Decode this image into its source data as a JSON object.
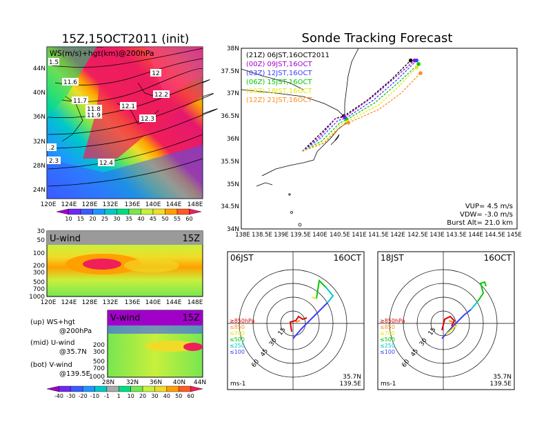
{
  "top_map": {
    "title": "15Z,15OCT2011 (init)",
    "label": "WS(m/s)+hgt(km)@200hPa",
    "lon_ticks": [
      "120E",
      "124E",
      "128E",
      "132E",
      "136E",
      "140E",
      "144E",
      "148E"
    ],
    "lat_ticks": [
      "44N",
      "40N",
      "36N",
      "32N",
      "28N",
      "24N"
    ],
    "height_labels": [
      "1.5",
      "11.6",
      "11.7",
      "11.8",
      "11.9",
      "12.1",
      "12",
      "12.2",
      "12.3",
      "12.4",
      ".2",
      "2.3"
    ],
    "colorbar_labels": [
      "10",
      "15",
      "20",
      "25",
      "30",
      "35",
      "40",
      "45",
      "50",
      "55",
      "60"
    ],
    "colorbar_colors": [
      "#a000c8",
      "#6e28f0",
      "#3c5aff",
      "#1e96ff",
      "#00c8c8",
      "#00dc82",
      "#78e650",
      "#c8f03c",
      "#f0dc28",
      "#ffa000",
      "#ff5a28",
      "#f01e5a"
    ]
  },
  "uwind": {
    "title": "U-wind",
    "time": "15Z",
    "pres_ticks": [
      "30",
      "50",
      "100",
      "200",
      "300",
      "500",
      "700",
      "1000"
    ],
    "lon_ticks": [
      "120E",
      "124E",
      "128E",
      "132E",
      "136E",
      "140E",
      "144E",
      "148E"
    ]
  },
  "vwind": {
    "title": "V-wind",
    "time": "15Z",
    "pres_ticks": [
      "200",
      "300",
      "500",
      "700",
      "1000"
    ],
    "lat_ticks": [
      "28N",
      "32N",
      "36N",
      "40N",
      "44N"
    ]
  },
  "legend_notes": [
    {
      "a": "(up) WS+hgt",
      "b": "@200hPa"
    },
    {
      "a": "(mid) U-wind",
      "b": "@35.7N"
    },
    {
      "a": "(bot) V-wind",
      "b": "@139.5E"
    }
  ],
  "bottom_colorbar": {
    "labels": [
      "-40",
      "-30",
      "-20",
      "-10",
      "-1",
      "1",
      "10",
      "20",
      "30",
      "40",
      "50",
      "60"
    ],
    "colors": [
      "#a000c8",
      "#6e28f0",
      "#3c5aff",
      "#1e96ff",
      "#00c8c8",
      "#aaaaaa",
      "#00dc82",
      "#78e650",
      "#c8f03c",
      "#f0dc28",
      "#ffa000",
      "#ff5a28",
      "#f01e5a"
    ]
  },
  "tracking": {
    "title": "Sonde Tracking Forecast",
    "x_ticks": [
      "138E",
      "138.5E",
      "139E",
      "139.5E",
      "140E",
      "140.5E",
      "141E",
      "141.5E",
      "142E",
      "142.5E",
      "143E",
      "143.5E",
      "144E",
      "144.5E",
      "145E"
    ],
    "y_ticks": [
      "38N",
      "37.5N",
      "37N",
      "36.5N",
      "36N",
      "35.5N",
      "35N",
      "34.5N",
      "34N"
    ],
    "legend": [
      {
        "label": "(21Z)  06JST,16OCT2011",
        "color": "#000000"
      },
      {
        "label": "(00Z)  09JST,16OCT",
        "color": "#a000c8"
      },
      {
        "label": "(03Z)  12JST,16OCT",
        "color": "#3c3cff"
      },
      {
        "label": "(06Z)  15JST,16OCT",
        "color": "#00c800"
      },
      {
        "label": "(09Z)  18JST,16OCT",
        "color": "#e6e614"
      },
      {
        "label": "(12Z)  21JST,16OCT",
        "color": "#ff8c1e"
      }
    ],
    "info": [
      "VUP= 4.5 m/s",
      "VDW= -3.0 m/s",
      "Burst Alt= 21.0 km"
    ]
  },
  "chart_data": [
    {
      "type": "line",
      "title": "Sonde Tracking Forecast",
      "xlim": [
        138,
        145
      ],
      "ylim": [
        34,
        38
      ],
      "series": [
        {
          "name": "(21Z)  06JST,16OCT2011",
          "x": [
            139.55,
            140.0,
            140.4,
            140.6,
            141.2,
            141.8,
            142.3
          ],
          "y": [
            35.72,
            36.1,
            36.45,
            36.5,
            36.85,
            37.3,
            37.73
          ]
        },
        {
          "name": "(00Z)  09JST,16OCT",
          "x": [
            139.55,
            140.0,
            140.4,
            140.62,
            141.3,
            141.9,
            142.4
          ],
          "y": [
            35.72,
            36.05,
            36.45,
            36.48,
            36.9,
            37.35,
            37.73
          ]
        },
        {
          "name": "(03Z)  12JST,16OCT",
          "x": [
            139.55,
            140.0,
            140.45,
            140.65,
            141.35,
            141.95,
            142.45
          ],
          "y": [
            35.72,
            36.0,
            36.4,
            36.45,
            36.85,
            37.3,
            37.73
          ]
        },
        {
          "name": "(06Z)  15JST,16OCT",
          "x": [
            139.55,
            140.05,
            140.5,
            140.68,
            141.4,
            142.0,
            142.5
          ],
          "y": [
            35.72,
            35.95,
            36.35,
            36.42,
            36.8,
            37.25,
            37.65
          ]
        },
        {
          "name": "(09Z)  18JST,16OCT",
          "x": [
            139.55,
            140.1,
            140.5,
            140.7,
            141.5,
            142.05,
            142.45
          ],
          "y": [
            35.72,
            35.92,
            36.3,
            36.38,
            36.75,
            37.2,
            37.58
          ]
        },
        {
          "name": "(12Z)  21JST,16OCT",
          "x": [
            139.55,
            140.1,
            140.5,
            140.72,
            141.5,
            142.05,
            142.55
          ],
          "y": [
            35.72,
            35.9,
            36.25,
            36.35,
            36.65,
            37.0,
            37.45
          ]
        }
      ]
    }
  ],
  "hodo_left": {
    "title": "06JST",
    "date": "16OCT",
    "ring_labels": [
      "15",
      "30",
      "45",
      "60"
    ],
    "levels": [
      {
        "label": "≥850hPa",
        "color": "#dc0000"
      },
      {
        "label": "≤850",
        "color": "#ff8c1e"
      },
      {
        "label": "≤700",
        "color": "#e6e614"
      },
      {
        "label": "≤500",
        "color": "#00c800"
      },
      {
        "label": "≤250",
        "color": "#00c8c8"
      },
      {
        "label": "≤100",
        "color": "#3c3cff"
      }
    ],
    "unit": "ms-1",
    "lat": "35.7N",
    "lon": "139.5E"
  },
  "hodo_right": {
    "title": "18JST",
    "date": "16OCT",
    "ring_labels": [
      "15",
      "30",
      "45",
      "60"
    ],
    "levels": [
      {
        "label": "≥850hPa",
        "color": "#dc0000"
      },
      {
        "label": "≤850",
        "color": "#ff8c1e"
      },
      {
        "label": "≤700",
        "color": "#e6e614"
      },
      {
        "label": "≤500",
        "color": "#00c800"
      },
      {
        "label": "≤250",
        "color": "#00c8c8"
      },
      {
        "label": "≤100",
        "color": "#3c3cff"
      }
    ],
    "unit": "ms-1",
    "lat": "35.7N",
    "lon": "139.5E"
  }
}
